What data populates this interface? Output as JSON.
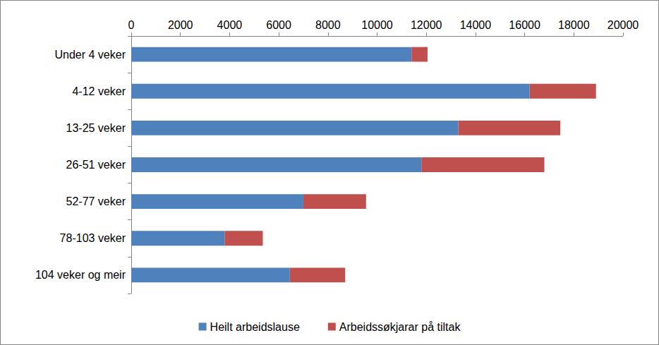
{
  "chart_data": {
    "type": "bar",
    "orientation": "horizontal",
    "stacked": true,
    "grid": false,
    "legend": "bottom",
    "categories": [
      "Under 4 veker",
      "4-12 veker",
      "13-25 veker",
      "26-51 veker",
      "52-77 veker",
      "78-103 veker",
      "104 veker og meir"
    ],
    "series": [
      {
        "name": "Heilt arbeidslause",
        "color": "#4f81bd",
        "values": [
          11400,
          16200,
          13300,
          11800,
          7000,
          3800,
          6450
        ]
      },
      {
        "name": "Arbeidssøkjarar på tiltak",
        "color": "#c0504d",
        "values": [
          650,
          2700,
          4150,
          5000,
          2550,
          1550,
          2250
        ]
      }
    ],
    "xlim": [
      0,
      20000
    ],
    "xticks": [
      0,
      2000,
      4000,
      6000,
      8000,
      10000,
      12000,
      14000,
      16000,
      18000,
      20000
    ]
  }
}
